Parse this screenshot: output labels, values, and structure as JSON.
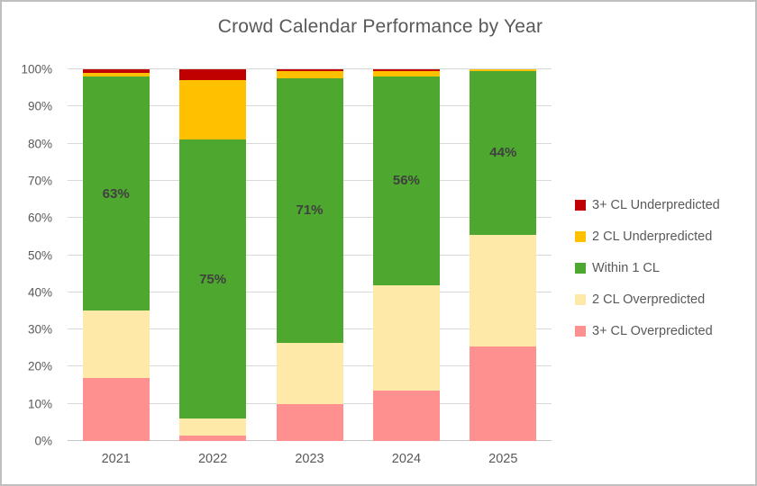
{
  "window": {
    "background": "#FFFFFF",
    "border_color": "#BFBFBF"
  },
  "chart_data": {
    "type": "bar",
    "variant": "stacked-column-100",
    "title": "Crowd Calendar Performance by Year",
    "categories": [
      "2021",
      "2022",
      "2023",
      "2024",
      "2025"
    ],
    "series": [
      {
        "name": "3+ CL Overpredicted",
        "color": "#FF9090",
        "values": [
          17,
          1.5,
          10,
          13.5,
          25.5
        ]
      },
      {
        "name": "2 CL Overpredicted",
        "color": "#FFE9A9",
        "values": [
          18,
          4.5,
          16.5,
          28.5,
          30
        ]
      },
      {
        "name": "Within 1 CL",
        "color": "#4EA72E",
        "values": [
          63,
          75,
          71,
          56,
          44
        ],
        "data_labels": [
          "63%",
          "75%",
          "71%",
          "56%",
          "44%"
        ]
      },
      {
        "name": "2 CL Underpredicted",
        "color": "#FFC000",
        "values": [
          1,
          16,
          2,
          1.5,
          0.5
        ]
      },
      {
        "name": "3+ CL Underpredicted",
        "color": "#C00000",
        "values": [
          1,
          3,
          0.5,
          0.5,
          0
        ]
      }
    ],
    "y_axis": {
      "min": 0,
      "max": 100,
      "step": 10,
      "tick_suffix": "%",
      "tick_labels": [
        "0%",
        "10%",
        "20%",
        "30%",
        "40%",
        "50%",
        "60%",
        "70%",
        "80%",
        "90%",
        "100%"
      ]
    },
    "x_axis": {
      "tick_labels": [
        "2021",
        "2022",
        "2023",
        "2024",
        "2025"
      ]
    },
    "grid": true,
    "legend": {
      "position": "right",
      "entries": [
        {
          "label": "3+ CL Underpredicted",
          "color": "#C00000"
        },
        {
          "label": "2 CL Underpredicted",
          "color": "#FFC000"
        },
        {
          "label": "Within 1 CL",
          "color": "#4EA72E"
        },
        {
          "label": "2 CL Overpredicted",
          "color": "#FFE9A9"
        },
        {
          "label": "3+ CL Overpredicted",
          "color": "#FF9090"
        }
      ]
    }
  },
  "styles": {
    "title_color": "#595959",
    "axis_text_color": "#595959",
    "gridline_color": "#D9D9D9",
    "bar_label_color": "#404040"
  }
}
